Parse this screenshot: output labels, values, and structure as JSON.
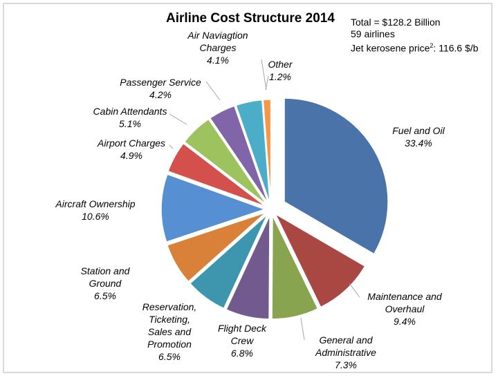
{
  "chart_data": {
    "type": "pie",
    "title": "Airline Cost Structure 2014",
    "annotations": {
      "total": "Total = $128.2 Billion",
      "airlines": "59 airlines",
      "fuel_price_prefix": "Jet kerosene price",
      "fuel_price_sup": "2",
      "fuel_price_suffix": ": 116.6 $/b"
    },
    "unit": "%",
    "start_angle": "12 o'clock, clockwise",
    "exploded": true,
    "slices": [
      {
        "label_lines": [
          "Fuel and Oil"
        ],
        "value": 33.4,
        "pct": "33.4%",
        "color": "#4A74A9"
      },
      {
        "label_lines": [
          "Maintenance and",
          "Overhaul"
        ],
        "value": 9.4,
        "pct": "9.4%",
        "color": "#A94743"
      },
      {
        "label_lines": [
          "General and",
          "Administrative"
        ],
        "value": 7.3,
        "pct": "7.3%",
        "color": "#88A44F"
      },
      {
        "label_lines": [
          "Flight Deck",
          "Crew"
        ],
        "value": 6.8,
        "pct": "6.8%",
        "color": "#725A8F"
      },
      {
        "label_lines": [
          "Reservation,",
          "Ticketing,",
          "Sales and",
          "Promotion"
        ],
        "value": 6.5,
        "pct": "6.5%",
        "color": "#3D96AE"
      },
      {
        "label_lines": [
          "Station and",
          "Ground"
        ],
        "value": 6.5,
        "pct": "6.5%",
        "color": "#DA8139"
      },
      {
        "label_lines": [
          "Aircraft Ownership"
        ],
        "value": 10.6,
        "pct": "10.6%",
        "color": "#578FD3"
      },
      {
        "label_lines": [
          "Airport Charges"
        ],
        "value": 4.9,
        "pct": "4.9%",
        "color": "#D3504C"
      },
      {
        "label_lines": [
          "Cabin Attendants"
        ],
        "value": 5.1,
        "pct": "5.1%",
        "color": "#9DC35F"
      },
      {
        "label_lines": [
          "Passenger Service"
        ],
        "value": 4.2,
        "pct": "4.2%",
        "color": "#8066A8"
      },
      {
        "label_lines": [
          "Air Naviagtion",
          "Charges"
        ],
        "value": 4.1,
        "pct": "4.1%",
        "color": "#4BADC7"
      },
      {
        "label_lines": [
          "Other"
        ],
        "value": 1.2,
        "pct": "1.2%",
        "color": "#F79646"
      }
    ]
  }
}
